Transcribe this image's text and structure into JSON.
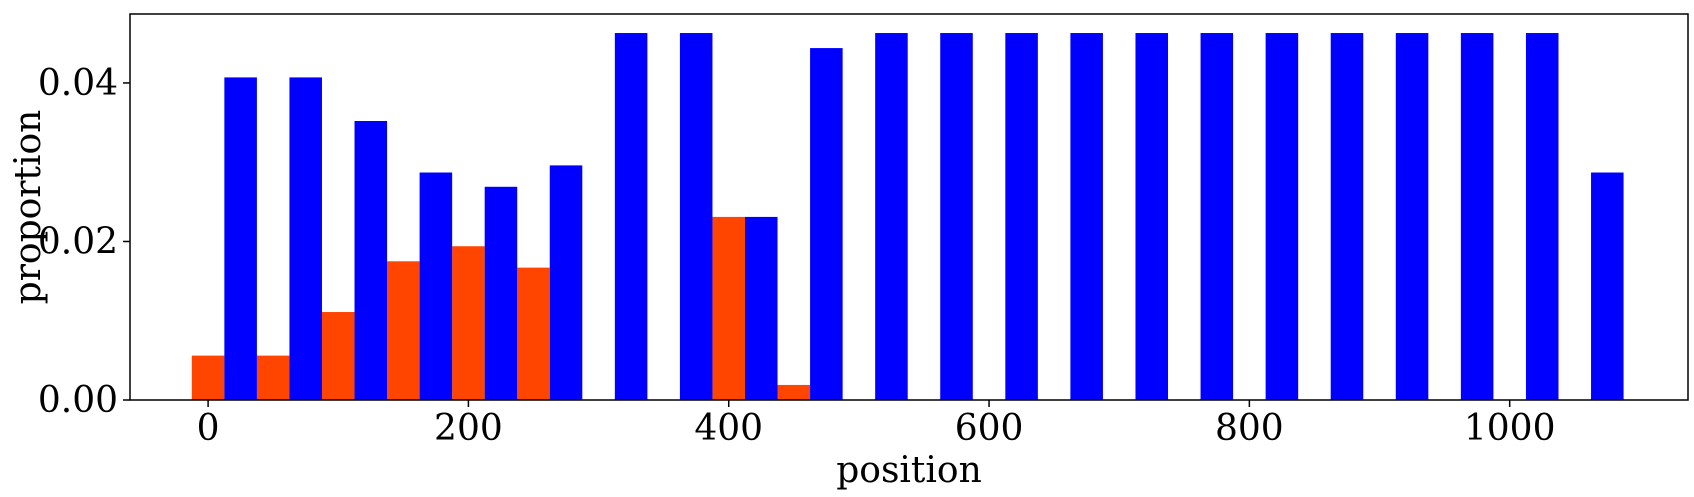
{
  "chart_data": {
    "type": "bar",
    "xlabel": "position",
    "ylabel": "proportion",
    "xlim": [
      -60,
      1137
    ],
    "ylim": [
      0,
      0.0487
    ],
    "x_ticks": [
      0,
      200,
      400,
      600,
      800,
      1000
    ],
    "x_tick_labels": [
      "0",
      "200",
      "400",
      "600",
      "800",
      "1000"
    ],
    "y_ticks": [
      0.0,
      0.02,
      0.04
    ],
    "y_tick_labels": [
      "0.00",
      "0.02",
      "0.04"
    ],
    "bar_width": 25,
    "series": [
      {
        "color": "#ff4500",
        "x": [
          0,
          50,
          100,
          150,
          200,
          250,
          400,
          450
        ],
        "values": [
          0.0056,
          0.0056,
          0.0111,
          0.0175,
          0.0194,
          0.0167,
          0.0231,
          0.0019
        ]
      },
      {
        "color": "#0000ff",
        "x": [
          25,
          75,
          125,
          175,
          225,
          275,
          325,
          375,
          425,
          475,
          525,
          575,
          625,
          675,
          725,
          775,
          825,
          875,
          925,
          975,
          1025,
          1075
        ],
        "values": [
          0.0407,
          0.0407,
          0.0352,
          0.0287,
          0.0269,
          0.0296,
          0.0463,
          0.0463,
          0.0231,
          0.0444,
          0.0463,
          0.0463,
          0.0463,
          0.0463,
          0.0463,
          0.0463,
          0.0463,
          0.0463,
          0.0463,
          0.0463,
          0.0463,
          0.0287
        ]
      }
    ],
    "grid": false,
    "legend": "none"
  }
}
